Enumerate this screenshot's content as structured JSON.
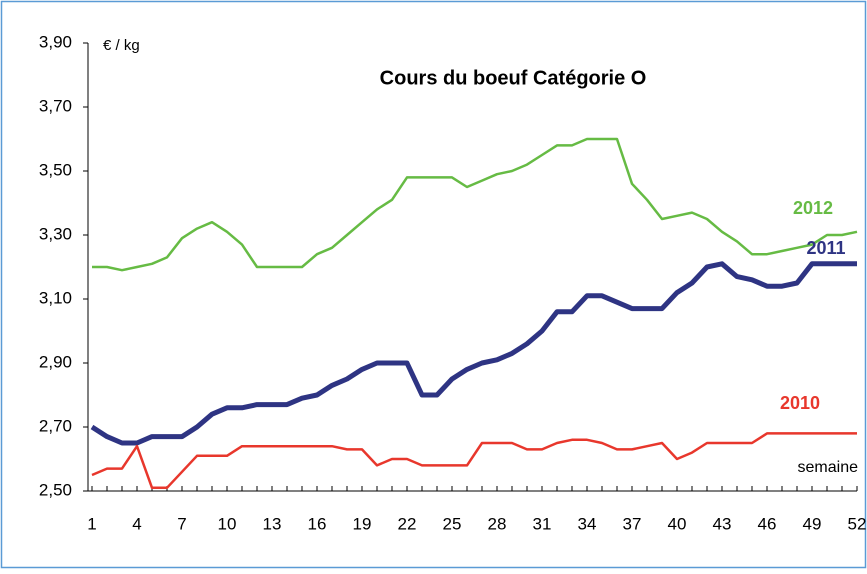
{
  "chart_data": {
    "type": "line",
    "title": "Cours du boeuf Catégorie O",
    "y_label": "€ / kg",
    "x_label": "semaine",
    "x": [
      1,
      2,
      3,
      4,
      5,
      6,
      7,
      8,
      9,
      10,
      11,
      12,
      13,
      14,
      15,
      16,
      17,
      18,
      19,
      20,
      21,
      22,
      23,
      24,
      25,
      26,
      27,
      28,
      29,
      30,
      31,
      32,
      33,
      34,
      35,
      36,
      37,
      38,
      39,
      40,
      41,
      42,
      43,
      44,
      45,
      46,
      47,
      48,
      49,
      50,
      51,
      52
    ],
    "xlim": [
      1,
      52
    ],
    "xticks": [
      1,
      4,
      7,
      10,
      13,
      16,
      19,
      22,
      25,
      28,
      31,
      34,
      37,
      40,
      43,
      46,
      49,
      52
    ],
    "ylim": [
      2.5,
      3.9
    ],
    "yticks": [
      {
        "value": 2.5,
        "label": "2,50"
      },
      {
        "value": 2.7,
        "label": "2,70"
      },
      {
        "value": 2.9,
        "label": "2,90"
      },
      {
        "value": 3.1,
        "label": "3,10"
      },
      {
        "value": 3.3,
        "label": "3,30"
      },
      {
        "value": 3.5,
        "label": "3,50"
      },
      {
        "value": 3.7,
        "label": "3,70"
      },
      {
        "value": 3.9,
        "label": "3,90"
      }
    ],
    "series": [
      {
        "name": "2012",
        "color": "#66bb44",
        "values": [
          3.2,
          3.2,
          3.19,
          3.2,
          3.21,
          3.23,
          3.29,
          3.32,
          3.34,
          3.31,
          3.27,
          3.2,
          3.2,
          3.2,
          3.2,
          3.24,
          3.26,
          3.3,
          3.34,
          3.38,
          3.41,
          3.48,
          3.48,
          3.48,
          3.48,
          3.45,
          3.47,
          3.49,
          3.5,
          3.52,
          3.55,
          3.58,
          3.58,
          3.6,
          3.6,
          3.6,
          3.46,
          3.41,
          3.35,
          3.36,
          3.37,
          3.35,
          3.31,
          3.28,
          3.24,
          3.24,
          3.25,
          3.26,
          3.27,
          3.3,
          3.3,
          3.31
        ]
      },
      {
        "name": "2011",
        "color": "#2e3483",
        "values": [
          2.7,
          2.67,
          2.65,
          2.65,
          2.67,
          2.67,
          2.67,
          2.7,
          2.74,
          2.76,
          2.76,
          2.77,
          2.77,
          2.77,
          2.79,
          2.8,
          2.83,
          2.85,
          2.88,
          2.9,
          2.9,
          2.9,
          2.8,
          2.8,
          2.85,
          2.88,
          2.9,
          2.91,
          2.93,
          2.96,
          3.0,
          3.06,
          3.06,
          3.11,
          3.11,
          3.09,
          3.07,
          3.07,
          3.07,
          3.12,
          3.15,
          3.2,
          3.21,
          3.17,
          3.16,
          3.14,
          3.14,
          3.15,
          3.21,
          3.21,
          3.21,
          3.21
        ]
      },
      {
        "name": "2010",
        "color": "#e8372c",
        "values": [
          2.55,
          2.57,
          2.57,
          2.64,
          2.51,
          2.51,
          2.56,
          2.61,
          2.61,
          2.61,
          2.64,
          2.64,
          2.64,
          2.64,
          2.64,
          2.64,
          2.64,
          2.63,
          2.63,
          2.58,
          2.6,
          2.6,
          2.58,
          2.58,
          2.58,
          2.58,
          2.65,
          2.65,
          2.65,
          2.63,
          2.63,
          2.65,
          2.66,
          2.66,
          2.65,
          2.63,
          2.63,
          2.64,
          2.65,
          2.6,
          2.62,
          2.65,
          2.65,
          2.65,
          2.65,
          2.68,
          2.68,
          2.68,
          2.68,
          2.68,
          2.68,
          2.68
        ]
      }
    ]
  }
}
